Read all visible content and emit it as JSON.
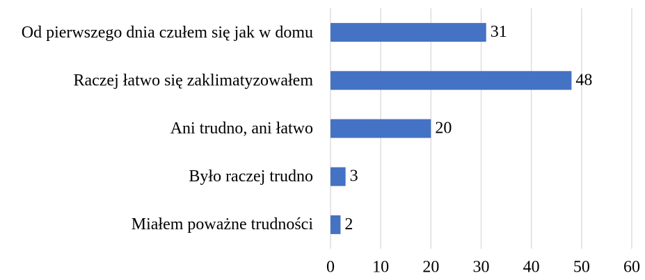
{
  "chart_data": {
    "type": "bar",
    "orientation": "horizontal",
    "categories": [
      "Od pierwszego dnia czułem się jak w domu",
      "Raczej łatwo się zaklimatyzowałem",
      "Ani trudno, ani łatwo",
      "Było raczej trudno",
      "Miałem poważne trudności"
    ],
    "values": [
      31,
      48,
      20,
      3,
      2
    ],
    "color": "#4472c4",
    "xlim": [
      0,
      60
    ],
    "xticks": [
      0,
      10,
      20,
      30,
      40,
      50,
      60
    ],
    "grid": true
  }
}
